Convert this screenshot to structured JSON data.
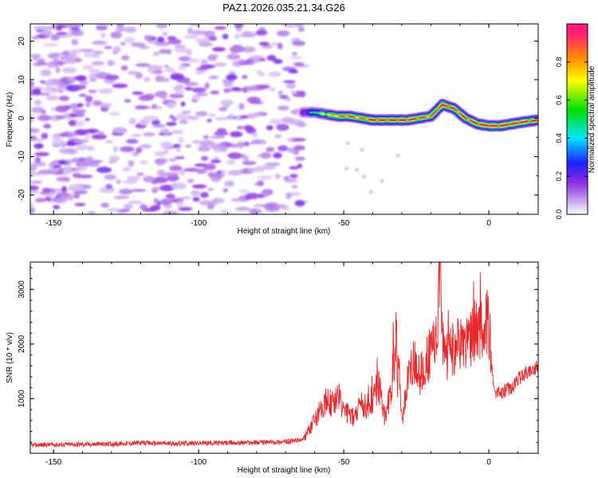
{
  "title": "PAZ1.2026.035.21.34.G26",
  "chart_data": [
    {
      "type": "heatmap",
      "xlabel": "Height of straight line (km)",
      "ylabel": "Frequency (Hz)",
      "xlim": [
        -158,
        17
      ],
      "ylim": [
        -25,
        24.5
      ],
      "xticks": [
        -150,
        -100,
        -50,
        0
      ],
      "yticks": [
        -20,
        -10,
        0,
        10,
        20
      ],
      "colorbar": {
        "label": "Normalized spectral amplitude",
        "range": [
          0,
          1
        ],
        "ticks": [
          0.0,
          0.2,
          0.4,
          0.6,
          0.8
        ],
        "tick_labels": [
          "0.0",
          "0.2",
          "0.4",
          "0.6",
          "0.8"
        ],
        "colors": [
          "#ffffff",
          "#c6a3ee",
          "#8a2be2",
          "#2020ff",
          "#00e5ff",
          "#00e000",
          "#ffff00",
          "#ff8c00",
          "#ff1e78"
        ]
      },
      "noise_region": {
        "x": [
          -158,
          -64
        ],
        "amplitude_range": [
          0.05,
          0.2
        ]
      },
      "ridge": {
        "x": [
          -64,
          -60,
          -56,
          -52,
          -48,
          -44,
          -40,
          -36,
          -32,
          -28,
          -24,
          -20,
          -16,
          -12,
          -8,
          -4,
          0,
          4,
          8,
          12,
          17
        ],
        "frequency_hz": [
          1.5,
          1.5,
          1.0,
          0.5,
          0.5,
          0.0,
          -0.5,
          -0.5,
          -0.5,
          -0.5,
          0.0,
          0.5,
          3.5,
          2.5,
          0.0,
          -1.5,
          -2.0,
          -2.0,
          -1.5,
          -1.0,
          -0.5
        ],
        "peak_amplitude": [
          0.35,
          0.5,
          0.65,
          0.75,
          0.85,
          0.75,
          0.9,
          0.85,
          0.9,
          0.9,
          0.85,
          0.8,
          0.95,
          0.85,
          0.85,
          0.9,
          0.95,
          0.9,
          0.95,
          0.9,
          0.85
        ]
      }
    },
    {
      "type": "line",
      "xlabel": "Height of straight line (km)",
      "ylabel": "SNR (10 * v/v)",
      "xlim": [
        -158,
        17
      ],
      "ylim": [
        0,
        3500
      ],
      "xticks": [
        -150,
        -100,
        -50,
        0
      ],
      "yticks": [
        1000,
        2000,
        3000
      ],
      "color": "#e8272a",
      "series": [
        {
          "x": [
            -158,
            -150,
            -140,
            -130,
            -120,
            -110,
            -100,
            -90,
            -80,
            -70,
            -64,
            -62,
            -60,
            -58,
            -56,
            -54,
            -52,
            -50,
            -48,
            -46,
            -44,
            -42,
            -40,
            -38,
            -36,
            -34,
            -32,
            -30,
            -28,
            -26,
            -24,
            -22,
            -20,
            -18,
            -17,
            -16,
            -14,
            -12,
            -10,
            -8,
            -6,
            -4,
            -2,
            0,
            1,
            2,
            4,
            6,
            8,
            10,
            12,
            14,
            17
          ],
          "y": [
            150,
            160,
            165,
            170,
            190,
            180,
            185,
            190,
            200,
            210,
            250,
            400,
            600,
            800,
            1000,
            900,
            1100,
            750,
            700,
            650,
            900,
            850,
            1000,
            1300,
            700,
            1000,
            2100,
            600,
            1300,
            1700,
            1400,
            1600,
            1850,
            2000,
            3450,
            2000,
            1800,
            1900,
            2050,
            2000,
            2150,
            2300,
            2350,
            2400,
            1550,
            1100,
            1100,
            1150,
            1200,
            1350,
            1450,
            1500,
            1600
          ]
        }
      ]
    }
  ]
}
